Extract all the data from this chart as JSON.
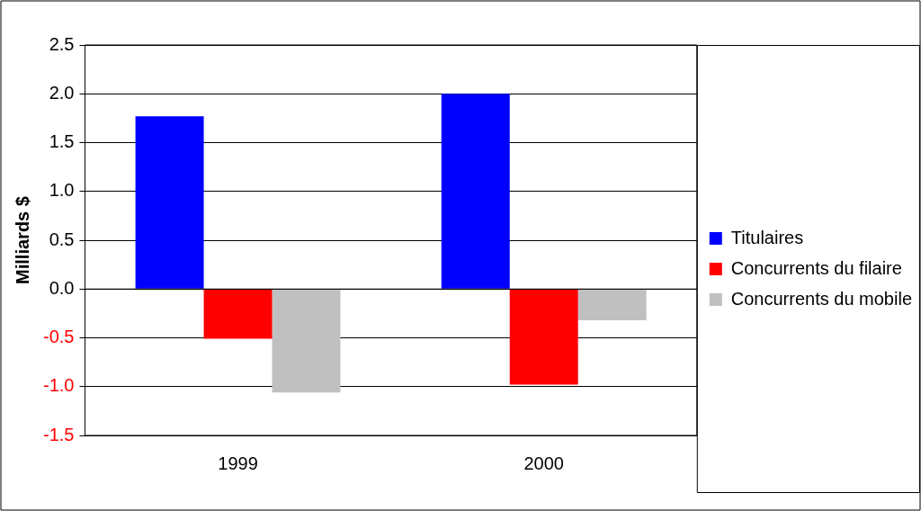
{
  "chart_data": {
    "type": "bar",
    "ylabel": "Milliards $",
    "categories": [
      "1999",
      "2000"
    ],
    "series": [
      {
        "name": "Titulaires",
        "color": "#0000ff",
        "values": [
          1.77,
          2.0
        ]
      },
      {
        "name": "Concurrents du filaire",
        "color": "#ff0000",
        "values": [
          -0.51,
          -0.98
        ]
      },
      {
        "name": "Concurrents du mobile",
        "color": "#c0c0c0",
        "values": [
          -1.06,
          -0.32
        ]
      }
    ],
    "ylim": [
      -1.5,
      2.5
    ],
    "yticks": [
      {
        "value": -1.5,
        "label": "-1.5"
      },
      {
        "value": -1,
        "label": "-1.0"
      },
      {
        "value": -0.5,
        "label": "-0.5"
      },
      {
        "value": 0,
        "label": "0.0"
      },
      {
        "value": 0.5,
        "label": "0.5"
      },
      {
        "value": 1,
        "label": "1.0"
      },
      {
        "value": 1.5,
        "label": "1.5"
      },
      {
        "value": 2,
        "label": "2.0"
      },
      {
        "value": 2.5,
        "label": "2.5"
      }
    ],
    "grid": "y",
    "legend": "right"
  }
}
